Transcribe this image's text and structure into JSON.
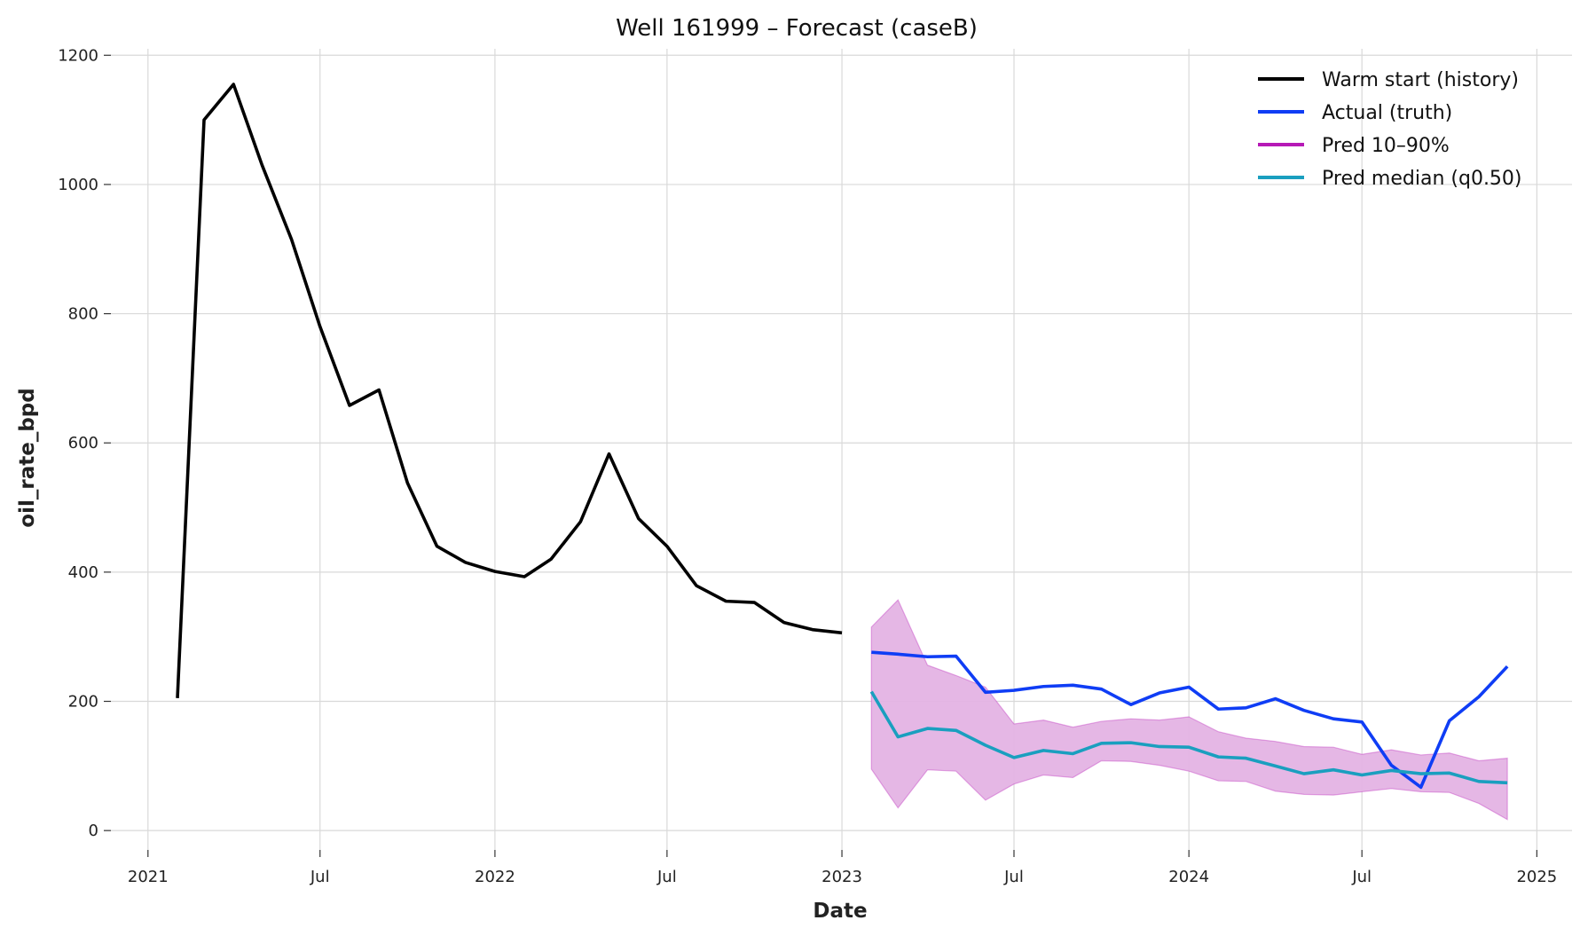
{
  "chart_data": {
    "type": "line",
    "title": "Well 161999 – Forecast (caseB)",
    "xlabel": "Date",
    "ylabel": "oil_rate_bpd",
    "xlim": [
      "2020-11-23",
      "2025-02-07"
    ],
    "ylim": [
      -30,
      1210
    ],
    "grid": true,
    "legend_position": "top-right",
    "x_ticks": [
      {
        "date": "2021-01-01",
        "label": "2021"
      },
      {
        "date": "2021-07-01",
        "label": "Jul"
      },
      {
        "date": "2022-01-01",
        "label": "2022"
      },
      {
        "date": "2022-07-01",
        "label": "Jul"
      },
      {
        "date": "2023-01-01",
        "label": "2023"
      },
      {
        "date": "2023-07-01",
        "label": "Jul"
      },
      {
        "date": "2024-01-01",
        "label": "2024"
      },
      {
        "date": "2024-07-01",
        "label": "Jul"
      },
      {
        "date": "2025-01-01",
        "label": "2025"
      }
    ],
    "y_ticks": [
      0,
      200,
      400,
      600,
      800,
      1000,
      1200
    ],
    "series": [
      {
        "name": "Warm start (history)",
        "kind": "line",
        "color": "#000000",
        "points": [
          [
            "2021-02-01",
            205
          ],
          [
            "2021-03-01",
            1100
          ],
          [
            "2021-04-01",
            1155
          ],
          [
            "2021-05-01",
            1030
          ],
          [
            "2021-06-01",
            915
          ],
          [
            "2021-07-01",
            780
          ],
          [
            "2021-08-01",
            658
          ],
          [
            "2021-09-01",
            682
          ],
          [
            "2021-10-01",
            538
          ],
          [
            "2021-11-01",
            440
          ],
          [
            "2021-12-01",
            415
          ],
          [
            "2022-01-01",
            401
          ],
          [
            "2022-02-01",
            393
          ],
          [
            "2022-03-01",
            420
          ],
          [
            "2022-04-01",
            478
          ],
          [
            "2022-05-01",
            583
          ],
          [
            "2022-06-01",
            483
          ],
          [
            "2022-07-01",
            440
          ],
          [
            "2022-08-01",
            379
          ],
          [
            "2022-09-01",
            355
          ],
          [
            "2022-10-01",
            353
          ],
          [
            "2022-11-01",
            322
          ],
          [
            "2022-12-01",
            311
          ],
          [
            "2023-01-01",
            306
          ]
        ]
      },
      {
        "name": "Actual (truth)",
        "kind": "line",
        "color": "#0f3df5",
        "points": [
          [
            "2023-02-01",
            276
          ],
          [
            "2023-03-01",
            273
          ],
          [
            "2023-04-01",
            269
          ],
          [
            "2023-05-01",
            270
          ],
          [
            "2023-06-01",
            214
          ],
          [
            "2023-07-01",
            217
          ],
          [
            "2023-08-01",
            223
          ],
          [
            "2023-09-01",
            225
          ],
          [
            "2023-10-01",
            219
          ],
          [
            "2023-11-01",
            195
          ],
          [
            "2023-12-01",
            213
          ],
          [
            "2024-01-01",
            222
          ],
          [
            "2024-02-01",
            188
          ],
          [
            "2024-03-01",
            190
          ],
          [
            "2024-04-01",
            204
          ],
          [
            "2024-05-01",
            186
          ],
          [
            "2024-06-01",
            173
          ],
          [
            "2024-07-01",
            168
          ],
          [
            "2024-08-01",
            101
          ],
          [
            "2024-09-01",
            67
          ],
          [
            "2024-10-01",
            170
          ],
          [
            "2024-11-01",
            207
          ],
          [
            "2024-12-01",
            254
          ]
        ]
      },
      {
        "name": "Pred 10–90%",
        "kind": "band",
        "color": "#b619b6",
        "fill": "#e4b3e4",
        "points": [
          [
            "2023-02-01",
            95,
            315
          ],
          [
            "2023-03-01",
            35,
            357
          ],
          [
            "2023-04-01",
            94,
            256
          ],
          [
            "2023-05-01",
            92,
            240
          ],
          [
            "2023-06-01",
            47,
            222
          ],
          [
            "2023-07-01",
            72,
            165
          ],
          [
            "2023-08-01",
            86,
            171
          ],
          [
            "2023-09-01",
            82,
            160
          ],
          [
            "2023-10-01",
            108,
            169
          ],
          [
            "2023-11-01",
            107,
            173
          ],
          [
            "2023-12-01",
            101,
            171
          ],
          [
            "2024-01-01",
            92,
            176
          ],
          [
            "2024-02-01",
            77,
            153
          ],
          [
            "2024-03-01",
            76,
            143
          ],
          [
            "2024-04-01",
            61,
            138
          ],
          [
            "2024-05-01",
            56,
            130
          ],
          [
            "2024-06-01",
            55,
            129
          ],
          [
            "2024-07-01",
            60,
            118
          ],
          [
            "2024-08-01",
            65,
            125
          ],
          [
            "2024-09-01",
            60,
            117
          ],
          [
            "2024-10-01",
            59,
            120
          ],
          [
            "2024-11-01",
            42,
            108
          ],
          [
            "2024-12-01",
            17,
            112
          ]
        ]
      },
      {
        "name": "Pred median (q0.50)",
        "kind": "line",
        "color": "#1a9fbf",
        "points": [
          [
            "2023-02-01",
            215
          ],
          [
            "2023-03-01",
            145
          ],
          [
            "2023-04-01",
            158
          ],
          [
            "2023-05-01",
            155
          ],
          [
            "2023-06-01",
            132
          ],
          [
            "2023-07-01",
            113
          ],
          [
            "2023-08-01",
            124
          ],
          [
            "2023-09-01",
            119
          ],
          [
            "2023-10-01",
            135
          ],
          [
            "2023-11-01",
            136
          ],
          [
            "2023-12-01",
            130
          ],
          [
            "2024-01-01",
            129
          ],
          [
            "2024-02-01",
            114
          ],
          [
            "2024-03-01",
            112
          ],
          [
            "2024-04-01",
            100
          ],
          [
            "2024-05-01",
            88
          ],
          [
            "2024-06-01",
            94
          ],
          [
            "2024-07-01",
            86
          ],
          [
            "2024-08-01",
            93
          ],
          [
            "2024-09-01",
            88
          ],
          [
            "2024-10-01",
            89
          ],
          [
            "2024-11-01",
            76
          ],
          [
            "2024-12-01",
            74
          ]
        ]
      }
    ]
  }
}
